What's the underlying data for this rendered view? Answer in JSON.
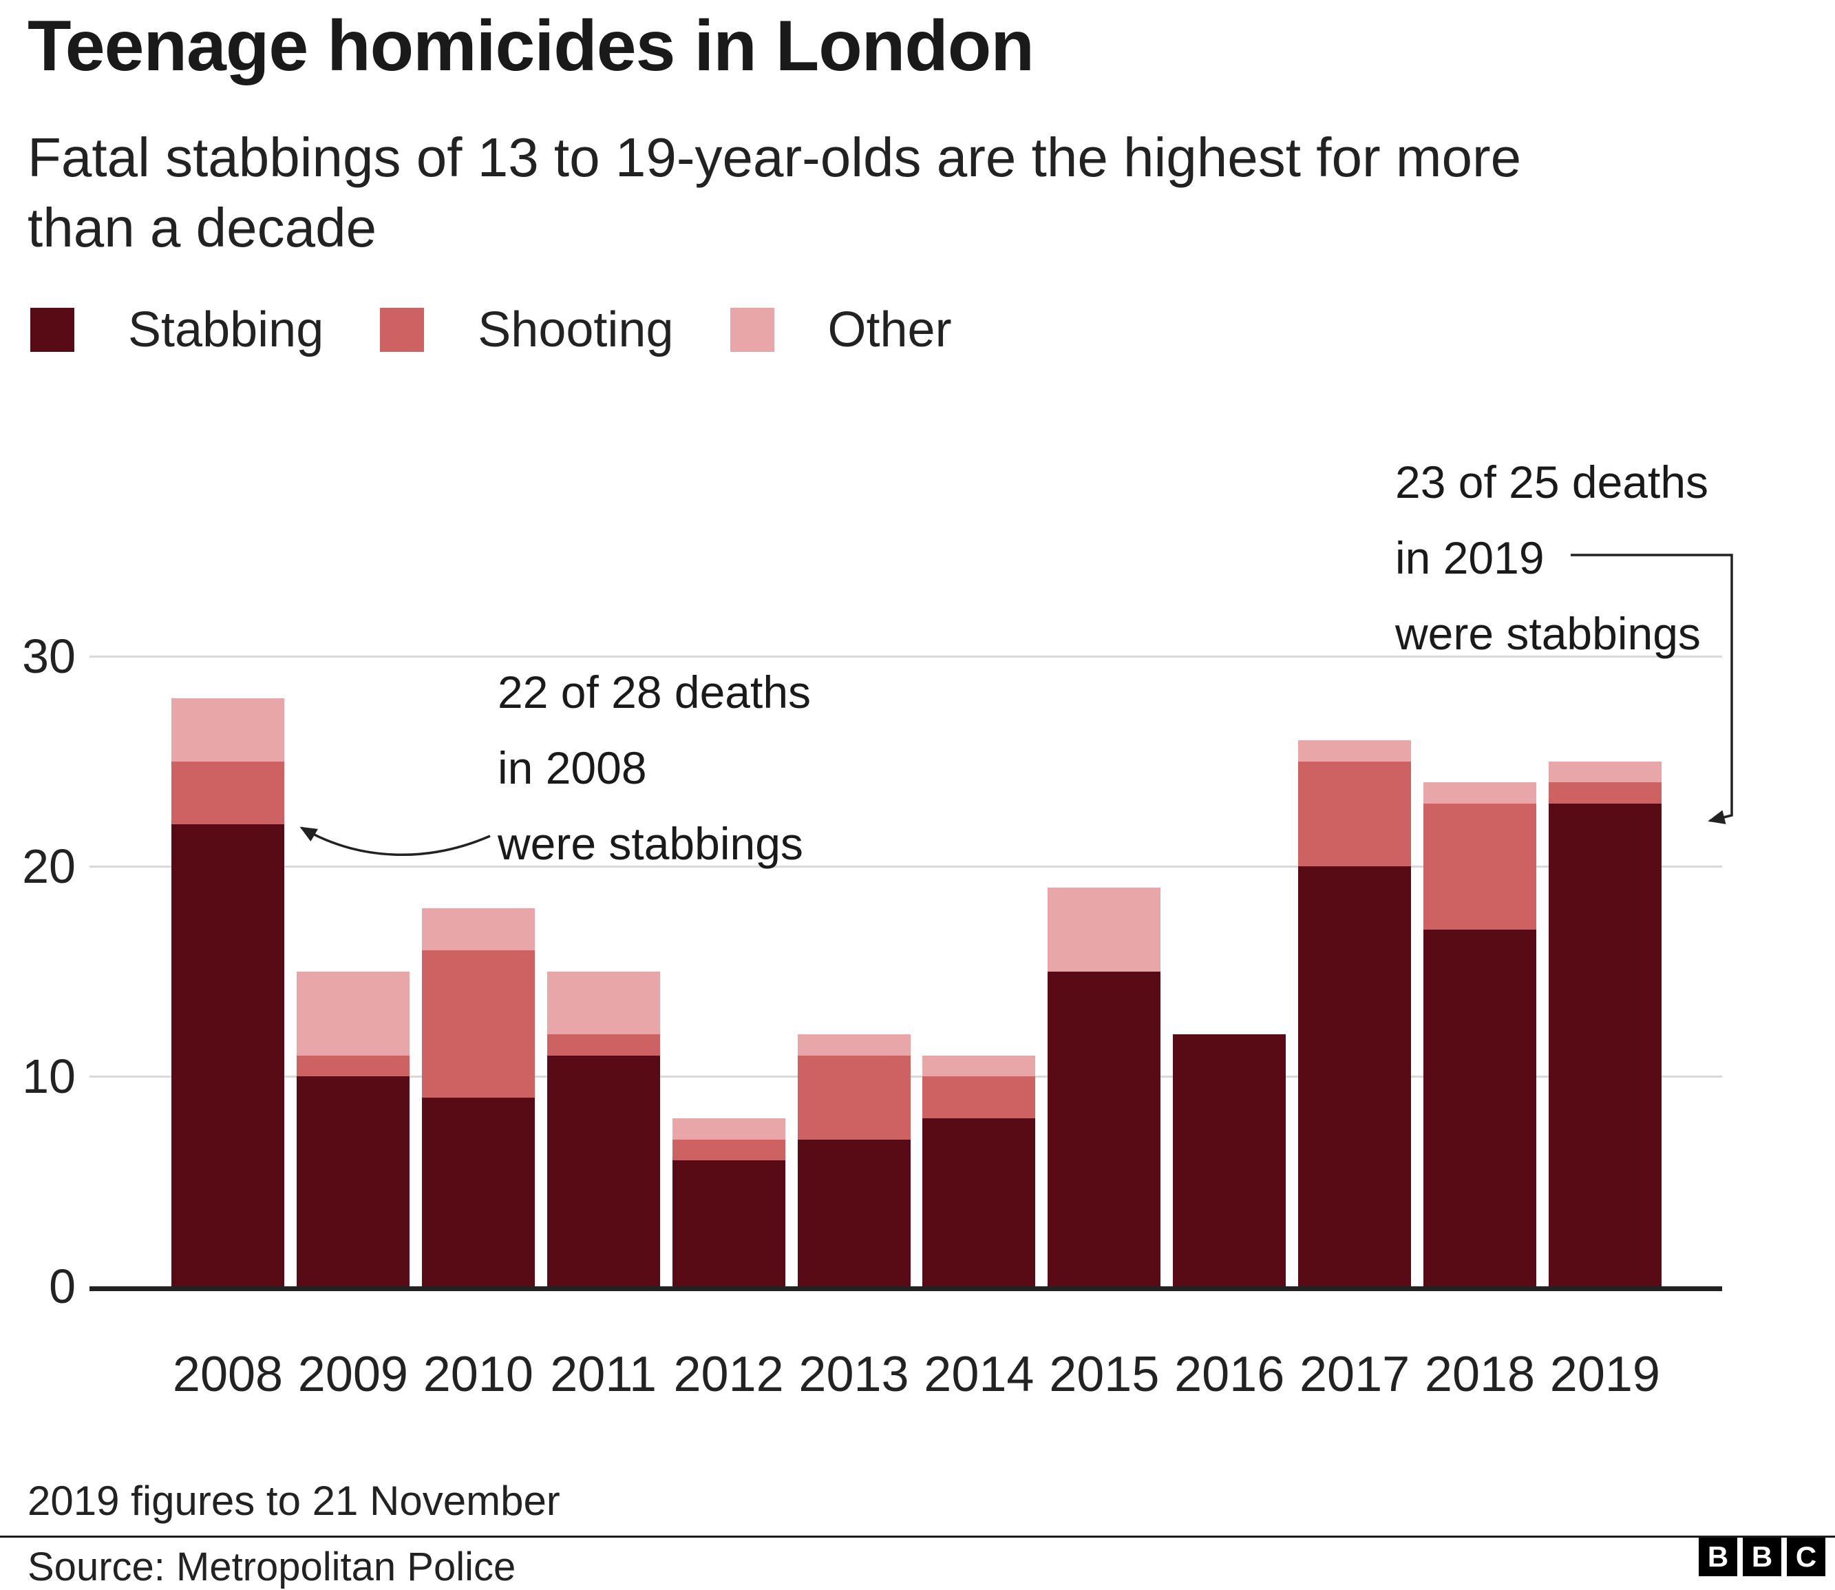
{
  "header": {
    "title": "Teenage homicides in London",
    "subtitle": "Fatal stabbings of 13 to 19-year-olds are the highest for more\nthan a decade"
  },
  "chart_data": {
    "type": "bar",
    "stacked": true,
    "title": "Teenage homicides in London",
    "categories": [
      "2008",
      "2009",
      "2010",
      "2011",
      "2012",
      "2013",
      "2014",
      "2015",
      "2016",
      "2017",
      "2018",
      "2019"
    ],
    "series": [
      {
        "name": "Stabbing",
        "color": "#580b14",
        "values": [
          22,
          10,
          9,
          11,
          6,
          7,
          8,
          15,
          12,
          20,
          17,
          23
        ]
      },
      {
        "name": "Shooting",
        "color": "#ce6161",
        "values": [
          3,
          1,
          7,
          1,
          1,
          4,
          2,
          0,
          0,
          5,
          6,
          1
        ]
      },
      {
        "name": "Other",
        "color": "#e9a6a9",
        "values": [
          3,
          4,
          2,
          3,
          1,
          1,
          1,
          4,
          0,
          1,
          1,
          1
        ]
      }
    ],
    "totals": [
      28,
      15,
      18,
      15,
      8,
      12,
      11,
      19,
      12,
      26,
      24,
      25
    ],
    "ylim": [
      0,
      30
    ],
    "yticks": [
      0,
      10,
      20,
      30
    ],
    "grid": true,
    "legend_position": "top"
  },
  "annotations": {
    "left": {
      "lines": [
        "22 of 28 deaths",
        "in 2008",
        "were stabbings"
      ]
    },
    "right": {
      "lines": [
        "23 of 25 deaths",
        "in 2019",
        "were stabbings"
      ]
    }
  },
  "footer": {
    "note": "2019 figures to 21 November",
    "source": "Source: Metropolitan Police",
    "logo_letters": [
      "B",
      "B",
      "C"
    ]
  }
}
